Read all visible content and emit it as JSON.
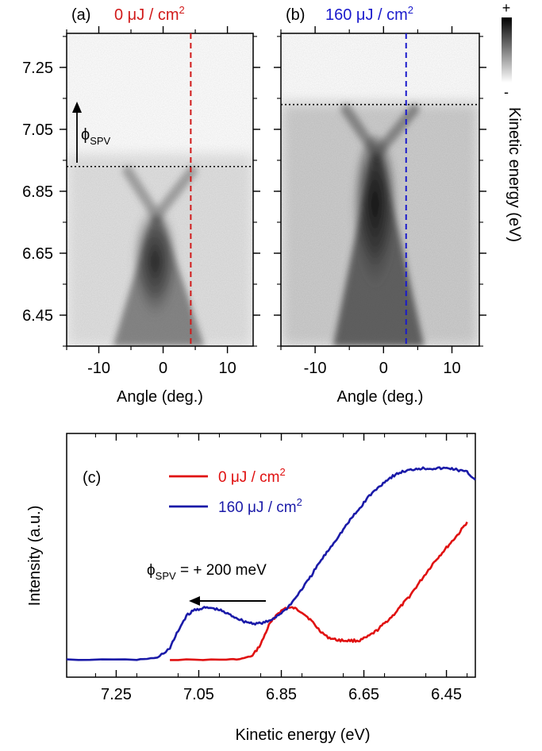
{
  "panel_a": {
    "label": "(a)",
    "fluence_value": "0 μJ / cm",
    "fluence_exp": "2",
    "color": "#d11a1a"
  },
  "panel_b": {
    "label": "(b)",
    "fluence_value": "160 μJ / cm",
    "fluence_exp": "2",
    "color": "#1a1acc"
  },
  "panel_c": {
    "label": "(c)"
  },
  "colorbar": {
    "plus": "+",
    "minus": "-",
    "ylabel": "Kinetic energy (eV)"
  },
  "annotations": {
    "phi_symbol": "ϕ",
    "phi_sub": "SPV",
    "shift_text": " = + 200 meV"
  },
  "chart_data": [
    {
      "type": "heatmap",
      "panel": "a",
      "xlabel": "Angle (deg.)",
      "ylabel": "Kinetic energy (eV)",
      "xlim": [
        -15,
        14
      ],
      "ylim": [
        6.35,
        7.36
      ],
      "x_ticks": [
        -10,
        0,
        10
      ],
      "x_tick_labels": [
        "-10",
        "0",
        "10"
      ],
      "y_ticks": [
        7.25,
        7.05,
        6.85,
        6.65,
        6.45
      ],
      "y_tick_labels": [
        "7.25",
        "7.05",
        "6.85",
        "6.65",
        "6.45"
      ],
      "dirac_point": {
        "angle": -1,
        "energy": 6.77
      },
      "cut_angle": 4.3,
      "fermi_edge": 6.93,
      "color": "#d11a1a"
    },
    {
      "type": "heatmap",
      "panel": "b",
      "xlabel": "Angle (deg.)",
      "xlim": [
        -15,
        14
      ],
      "ylim": [
        6.35,
        7.36
      ],
      "x_ticks": [
        -10,
        0,
        10
      ],
      "x_tick_labels": [
        "-10",
        "0",
        "10"
      ],
      "y_ticks": [
        7.25,
        7.05,
        6.85,
        6.65,
        6.45
      ],
      "dirac_point": {
        "angle": -1,
        "energy": 6.97
      },
      "cut_angle": 3.3,
      "fermi_edge": 7.13,
      "color": "#1a1acc"
    },
    {
      "type": "line",
      "panel": "c",
      "xlabel": "Kinetic energy (eV)",
      "ylabel": "Intensity (a.u.)",
      "x_reversed": true,
      "xlim": [
        7.37,
        6.38
      ],
      "ylim": [
        0,
        1
      ],
      "x_ticks": [
        7.25,
        7.05,
        6.85,
        6.65,
        6.45
      ],
      "x_tick_labels": [
        "7.25",
        "7.05",
        "6.85",
        "6.65",
        "6.45"
      ],
      "legend_position": "top-left",
      "series": [
        {
          "name": "0 μJ / cm2",
          "label_main": "0 μJ / cm",
          "label_exp": "2",
          "color": "#e01010",
          "x": [
            7.12,
            7.0,
            6.95,
            6.92,
            6.9,
            6.88,
            6.86,
            6.84,
            6.82,
            6.8,
            6.78,
            6.76,
            6.74,
            6.72,
            6.7,
            6.68,
            6.66,
            6.64,
            6.62,
            6.6,
            6.58,
            6.56,
            6.54,
            6.52,
            6.5,
            6.48,
            6.46,
            6.44,
            6.42,
            6.4
          ],
          "y": [
            0.0,
            0.0,
            0.003,
            0.02,
            0.08,
            0.18,
            0.24,
            0.27,
            0.27,
            0.25,
            0.21,
            0.16,
            0.12,
            0.105,
            0.1,
            0.1,
            0.1,
            0.12,
            0.15,
            0.19,
            0.23,
            0.28,
            0.33,
            0.39,
            0.45,
            0.51,
            0.56,
            0.61,
            0.66,
            0.72
          ]
        },
        {
          "name": "160 μJ / cm2",
          "label_main": "160 μJ / cm",
          "label_exp": "2",
          "color": "#1a1aa8",
          "x": [
            7.37,
            7.2,
            7.15,
            7.12,
            7.1,
            7.08,
            7.06,
            7.04,
            7.02,
            7.0,
            6.98,
            6.96,
            6.94,
            6.92,
            6.9,
            6.88,
            6.86,
            6.84,
            6.82,
            6.8,
            6.78,
            6.76,
            6.74,
            6.72,
            6.7,
            6.68,
            6.66,
            6.64,
            6.62,
            6.6,
            6.58,
            6.56,
            6.54,
            6.52,
            6.5,
            6.48,
            6.46,
            6.44,
            6.42,
            6.4,
            6.38
          ],
          "y": [
            0.0,
            0.0,
            0.01,
            0.06,
            0.15,
            0.23,
            0.26,
            0.27,
            0.27,
            0.26,
            0.24,
            0.22,
            0.2,
            0.19,
            0.19,
            0.2,
            0.23,
            0.26,
            0.31,
            0.37,
            0.43,
            0.5,
            0.56,
            0.62,
            0.68,
            0.74,
            0.79,
            0.85,
            0.89,
            0.93,
            0.96,
            0.98,
            0.99,
            1.0,
            1.0,
            1.0,
            1.0,
            1.0,
            0.99,
            0.98,
            0.94
          ]
        }
      ]
    }
  ]
}
